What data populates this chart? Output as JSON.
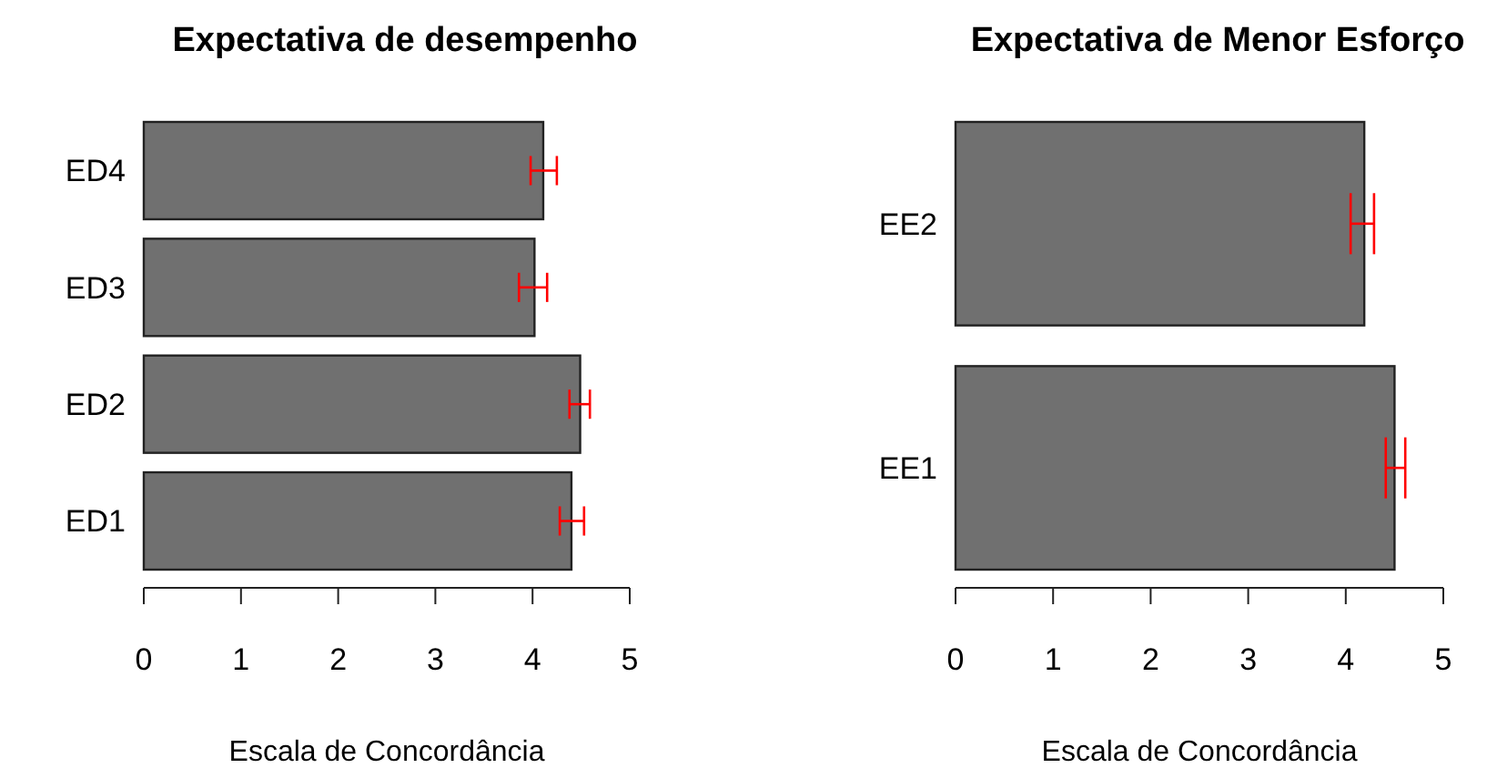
{
  "chart_data": [
    {
      "type": "bar",
      "orientation": "horizontal",
      "title": "Expectativa de desempenho",
      "xlabel": "Escala de Concordância",
      "categories": [
        "ED4",
        "ED3",
        "ED2",
        "ED1"
      ],
      "values": [
        4.11,
        4.02,
        4.49,
        4.4
      ],
      "color": "#707070",
      "errors": [
        [
          3.98,
          4.25
        ],
        [
          3.86,
          4.15
        ],
        [
          4.38,
          4.59
        ],
        [
          4.28,
          4.53
        ]
      ],
      "xlim": [
        0,
        5
      ],
      "xticks": [
        0,
        1,
        2,
        3,
        4,
        5
      ],
      "grid": false
    },
    {
      "type": "bar",
      "orientation": "horizontal",
      "title": "Expectativa de Menor Esforço",
      "xlabel": "Escala de Concordância",
      "categories": [
        "EE2",
        "EE1"
      ],
      "values": [
        4.19,
        4.5
      ],
      "color": "#707070",
      "errors": [
        [
          4.05,
          4.29
        ],
        [
          4.41,
          4.61
        ]
      ],
      "xlim": [
        0,
        5
      ],
      "xticks": [
        0,
        1,
        2,
        3,
        4,
        5
      ],
      "grid": false
    }
  ]
}
